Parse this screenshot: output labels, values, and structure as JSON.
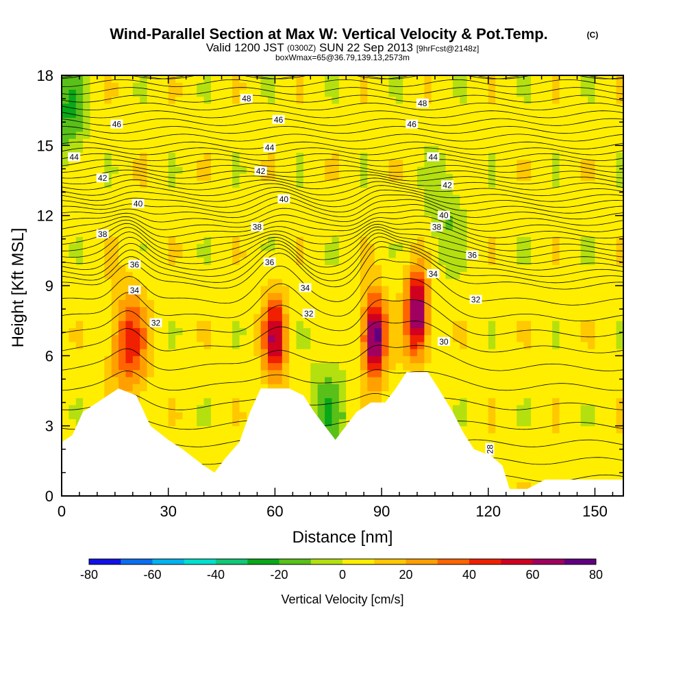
{
  "chart_data": {
    "type": "heatmap",
    "title": "Wind-Parallel Section at Max W: Vertical Velocity & Pot.Temp.",
    "title_mark": "(C)",
    "subtitle_line1_a": "Valid 1200 JST",
    "subtitle_line1_b": "(0300Z)",
    "subtitle_line1_c": "SUN 22 Sep 2013",
    "subtitle_line1_d": "[9hrFcst@2148z]",
    "subtitle_line2": "boxWmax=65@36.79,139.13,2573m",
    "xlabel": "Distance [nm]",
    "ylabel": "Height [Kft MSL]",
    "xlim": [
      0,
      158
    ],
    "ylim": [
      0,
      18
    ],
    "x_ticks": [
      0,
      30,
      60,
      90,
      120,
      150
    ],
    "y_ticks": [
      0,
      3,
      6,
      9,
      12,
      15,
      18
    ],
    "colorbar": {
      "label": "Vertical Velocity [cm/s]",
      "ticks": [
        -80,
        -60,
        -40,
        -20,
        0,
        20,
        40,
        60,
        80
      ],
      "bins": [
        -80,
        -70,
        -60,
        -50,
        -40,
        -30,
        -20,
        -10,
        0,
        10,
        20,
        30,
        40,
        50,
        60,
        70,
        80
      ],
      "colors": [
        "#1010e8",
        "#0a6ef0",
        "#00b4f0",
        "#00e0d0",
        "#10c878",
        "#08a818",
        "#58c018",
        "#b4e010",
        "#ffee00",
        "#ffc800",
        "#ffa000",
        "#ff6400",
        "#f02000",
        "#d00020",
        "#a00060",
        "#600080"
      ]
    },
    "background_w_cms": 5,
    "updrafts": [
      {
        "x": 19,
        "z": 6.5,
        "w": 40
      },
      {
        "x": 60,
        "z": 6.8,
        "w": 55
      },
      {
        "x": 88,
        "z": 6.8,
        "w": 75
      },
      {
        "x": 100,
        "z": 7.8,
        "w": 70
      },
      {
        "x": 2,
        "z": 16.5,
        "w": -25
      },
      {
        "x": 75,
        "z": 3.5,
        "w": -22
      },
      {
        "x": 108,
        "z": 12.0,
        "w": -15
      }
    ],
    "terrain_kft": [
      [
        0,
        2.3
      ],
      [
        3,
        2.6
      ],
      [
        6,
        3.6
      ],
      [
        10,
        4.0
      ],
      [
        13,
        4.3
      ],
      [
        16,
        4.6
      ],
      [
        21,
        4.3
      ],
      [
        25,
        3.0
      ],
      [
        30,
        2.4
      ],
      [
        34,
        2.0
      ],
      [
        40,
        1.3
      ],
      [
        43,
        1.0
      ],
      [
        46,
        1.6
      ],
      [
        50,
        2.3
      ],
      [
        53,
        3.6
      ],
      [
        56,
        4.6
      ],
      [
        60,
        4.6
      ],
      [
        64,
        4.6
      ],
      [
        68,
        4.3
      ],
      [
        71,
        3.6
      ],
      [
        74,
        3.0
      ],
      [
        77,
        2.4
      ],
      [
        80,
        3.0
      ],
      [
        83,
        3.6
      ],
      [
        87,
        4.0
      ],
      [
        91,
        4.0
      ],
      [
        94,
        4.6
      ],
      [
        97,
        5.3
      ],
      [
        103,
        5.3
      ],
      [
        106,
        4.6
      ],
      [
        110,
        3.6
      ],
      [
        113,
        2.7
      ],
      [
        116,
        2.0
      ],
      [
        121,
        1.7
      ],
      [
        124,
        1.3
      ],
      [
        126,
        0.3
      ],
      [
        131,
        0.3
      ],
      [
        136,
        0.7
      ],
      [
        158,
        0.7
      ]
    ],
    "potential_temperature_contours": [
      {
        "value": 28,
        "label_x": 120.5,
        "label_z": 2.0
      },
      {
        "value": 30,
        "label_x": 107.5,
        "label_z": 6.6
      },
      {
        "value": 32,
        "label_x": 26.5,
        "label_z": 7.4
      },
      {
        "value": 32,
        "label_x": 69.5,
        "label_z": 7.8
      },
      {
        "value": 32,
        "label_x": 116.5,
        "label_z": 8.4
      },
      {
        "value": 34,
        "label_x": 20.5,
        "label_z": 8.8
      },
      {
        "value": 34,
        "label_x": 68.5,
        "label_z": 8.9
      },
      {
        "value": 34,
        "label_x": 104.5,
        "label_z": 9.5
      },
      {
        "value": 36,
        "label_x": 20.5,
        "label_z": 9.9
      },
      {
        "value": 36,
        "label_x": 58.5,
        "label_z": 10.0
      },
      {
        "value": 36,
        "label_x": 115.5,
        "label_z": 10.3
      },
      {
        "value": 38,
        "label_x": 11.5,
        "label_z": 11.2
      },
      {
        "value": 38,
        "label_x": 55.0,
        "label_z": 11.5
      },
      {
        "value": 38,
        "label_x": 105.5,
        "label_z": 11.5
      },
      {
        "value": 40,
        "label_x": 21.5,
        "label_z": 12.5
      },
      {
        "value": 40,
        "label_x": 62.5,
        "label_z": 12.7
      },
      {
        "value": 40,
        "label_x": 107.5,
        "label_z": 12.0
      },
      {
        "value": 42,
        "label_x": 11.5,
        "label_z": 13.6
      },
      {
        "value": 42,
        "label_x": 56.0,
        "label_z": 13.9
      },
      {
        "value": 42,
        "label_x": 108.5,
        "label_z": 13.3
      },
      {
        "value": 44,
        "label_x": 3.5,
        "label_z": 14.5
      },
      {
        "value": 44,
        "label_x": 58.5,
        "label_z": 14.9
      },
      {
        "value": 44,
        "label_x": 104.5,
        "label_z": 14.5
      },
      {
        "value": 46,
        "label_x": 15.5,
        "label_z": 15.9
      },
      {
        "value": 46,
        "label_x": 61.0,
        "label_z": 16.1
      },
      {
        "value": 46,
        "label_x": 98.5,
        "label_z": 15.9
      },
      {
        "value": 48,
        "label_x": 52.0,
        "label_z": 17.0
      },
      {
        "value": 48,
        "label_x": 101.5,
        "label_z": 16.8
      }
    ],
    "theta_profile_kft": [
      [
        0,
        27.0
      ],
      [
        3,
        29.0
      ],
      [
        6,
        30.8
      ],
      [
        9,
        33.0
      ],
      [
        12,
        38.5
      ],
      [
        15,
        44.5
      ],
      [
        18,
        49.0
      ]
    ],
    "updraft_lift_kft": [
      {
        "x": 19,
        "dz": 1.3,
        "width": 6
      },
      {
        "x": 61,
        "dz": 1.5,
        "width": 8
      },
      {
        "x": 98,
        "dz": 1.6,
        "width": 12
      },
      {
        "x": 88,
        "dz": 1.0,
        "width": 5
      }
    ]
  }
}
